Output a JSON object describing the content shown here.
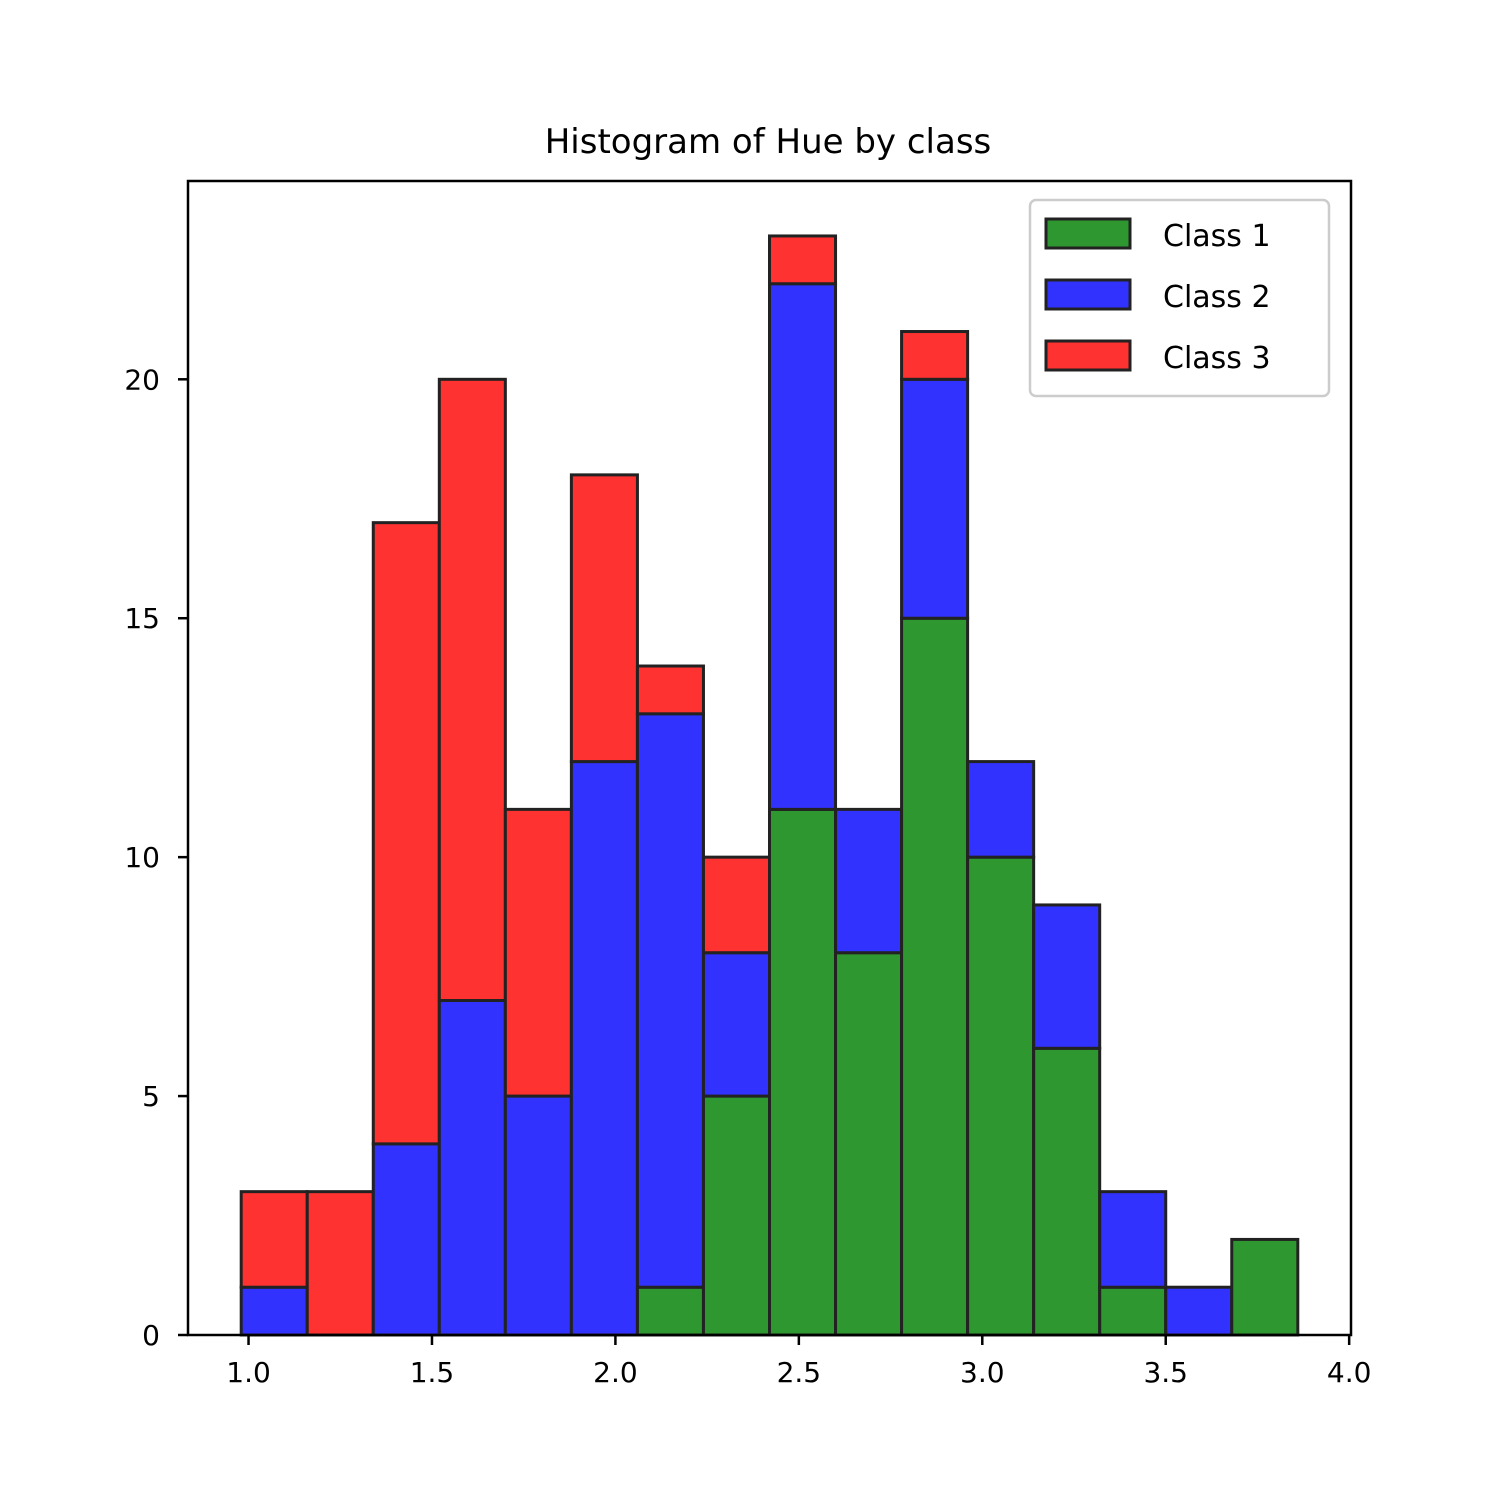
{
  "chart_data": {
    "type": "bar",
    "stacked": true,
    "title": "Histogram of Hue by class",
    "xlabel": "",
    "ylabel": "",
    "bins": [
      [
        0.98,
        1.16
      ],
      [
        1.16,
        1.34
      ],
      [
        1.34,
        1.52
      ],
      [
        1.52,
        1.7
      ],
      [
        1.7,
        1.88
      ],
      [
        1.88,
        2.06
      ],
      [
        2.06,
        2.24
      ],
      [
        2.24,
        2.42
      ],
      [
        2.42,
        2.6
      ],
      [
        2.6,
        2.78
      ],
      [
        2.78,
        2.96
      ],
      [
        2.96,
        3.14
      ],
      [
        3.14,
        3.32
      ],
      [
        3.32,
        3.5
      ],
      [
        3.5,
        3.68
      ],
      [
        3.68,
        3.86
      ]
    ],
    "series": [
      {
        "name": "Class 1",
        "color": "#2f972f",
        "values": [
          0,
          0,
          0,
          0,
          0,
          0,
          1,
          5,
          11,
          8,
          15,
          10,
          6,
          1,
          0,
          2
        ]
      },
      {
        "name": "Class 2",
        "color": "#3232ff",
        "values": [
          1,
          0,
          4,
          7,
          5,
          12,
          12,
          3,
          11,
          3,
          5,
          2,
          3,
          2,
          1,
          0
        ]
      },
      {
        "name": "Class 3",
        "color": "#ff3232",
        "values": [
          2,
          3,
          13,
          13,
          6,
          6,
          1,
          2,
          1,
          0,
          1,
          0,
          0,
          0,
          0,
          0
        ]
      }
    ],
    "xlim": [
      0.835,
      4.005
    ],
    "ylim": [
      0,
      24.15
    ],
    "x_ticks": [
      1.0,
      1.5,
      2.0,
      2.5,
      3.0,
      3.5,
      4.0
    ],
    "x_tick_labels": [
      "1.0",
      "1.5",
      "2.0",
      "2.5",
      "3.0",
      "3.5",
      "4.0"
    ],
    "y_ticks": [
      0,
      5,
      10,
      15,
      20
    ],
    "y_tick_labels": [
      "0",
      "5",
      "10",
      "15",
      "20"
    ],
    "grid": false,
    "legend_position": "top-right",
    "edge_color": "#222222"
  }
}
